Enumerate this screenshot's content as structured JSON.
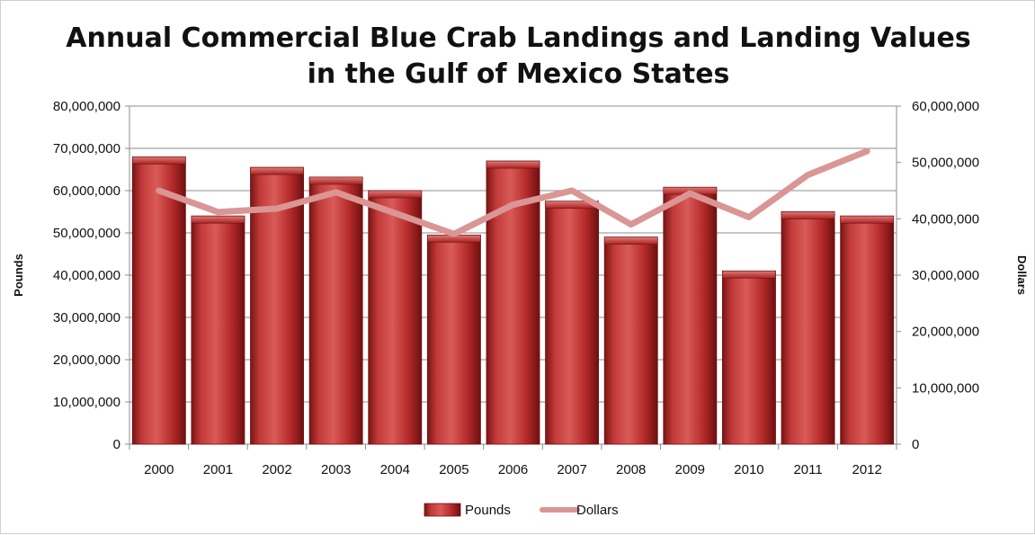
{
  "chart_data": {
    "type": "bar",
    "title_lines": [
      "Annual Commercial Blue Crab Landings and Landing Values",
      "in the Gulf of Mexico States"
    ],
    "categories": [
      "2000",
      "2001",
      "2002",
      "2003",
      "2004",
      "2005",
      "2006",
      "2007",
      "2008",
      "2009",
      "2010",
      "2011",
      "2012"
    ],
    "series": [
      {
        "name": "Pounds",
        "type": "bar",
        "axis": "left",
        "color": "#b52a2a",
        "values": [
          68000000,
          54000000,
          65500000,
          63200000,
          60000000,
          49500000,
          67000000,
          57500000,
          49000000,
          60800000,
          41000000,
          55000000,
          54000000
        ]
      },
      {
        "name": "Dollars",
        "type": "line",
        "axis": "right",
        "color": "#d99694",
        "values": [
          45000000,
          41200000,
          41800000,
          44700000,
          41000000,
          37300000,
          42500000,
          45000000,
          39000000,
          44500000,
          40300000,
          47800000,
          52000000
        ]
      }
    ],
    "ylabel_left": "Pounds",
    "ylabel_right": "Dollars",
    "ylim_left": [
      0,
      80000000
    ],
    "ylim_right": [
      0,
      60000000
    ],
    "yticks_left": [
      "0",
      "10,000,000",
      "20,000,000",
      "30,000,000",
      "40,000,000",
      "50,000,000",
      "60,000,000",
      "70,000,000",
      "80,000,000"
    ],
    "yticks_right": [
      "0",
      "10,000,000",
      "20,000,000",
      "30,000,000",
      "40,000,000",
      "50,000,000",
      "60,000,000"
    ],
    "grid": true,
    "legend_position": "bottom"
  }
}
